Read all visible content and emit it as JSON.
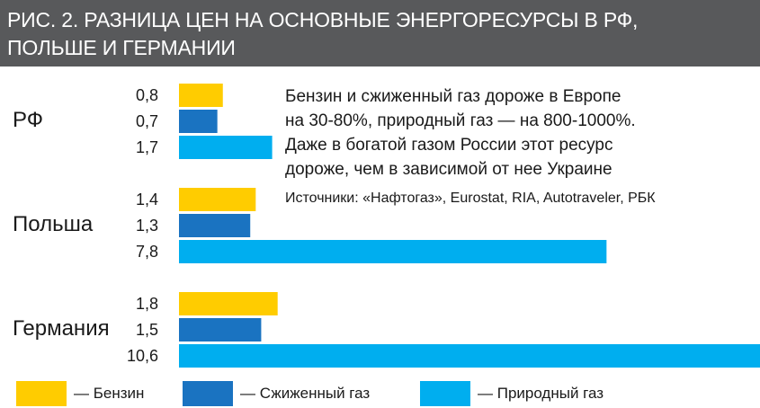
{
  "header": {
    "line1": "РИС. 2. РАЗНИЦА ЦЕН НА ОСНОВНЫЕ ЭНЕРГОРЕСУРСЫ В РФ,",
    "line2": "ПОЛЬШЕ И ГЕРМАНИИ"
  },
  "note": {
    "line1": "Бензин и сжиженный газ дороже в Европе",
    "line2": "на 30-80%, природный газ — на 800-1000%.",
    "line3": "Даже в богатой газом России этот ресурс",
    "line4": "дороже, чем в зависимой от нее Украине"
  },
  "sources": "Источники: «Нафтогаз», Eurostat, RIA, Autotraveler, РБК",
  "legend": [
    {
      "label": "— Бензин",
      "color": "#ffcc00"
    },
    {
      "label": "— Сжиженный газ",
      "color": "#1a73c1"
    },
    {
      "label": "— Природный газ",
      "color": "#00aeef"
    }
  ],
  "chart_data": {
    "type": "bar",
    "orientation": "horizontal",
    "categories": [
      "РФ",
      "Польша",
      "Германия"
    ],
    "series": [
      {
        "name": "Бензин",
        "color": "#ffcc00",
        "values": [
          0.8,
          1.4,
          1.8
        ]
      },
      {
        "name": "Сжиженный газ",
        "color": "#1a73c1",
        "values": [
          0.7,
          1.3,
          1.5
        ]
      },
      {
        "name": "Природный газ",
        "color": "#00aeef",
        "values": [
          1.7,
          7.8,
          10.6
        ]
      }
    ],
    "value_labels": [
      [
        "0,8",
        "0,7",
        "1,7"
      ],
      [
        "1,4",
        "1,3",
        "7,8"
      ],
      [
        "1,8",
        "1,5",
        "10,6"
      ]
    ],
    "grid": false,
    "legend_position": "bottom"
  }
}
